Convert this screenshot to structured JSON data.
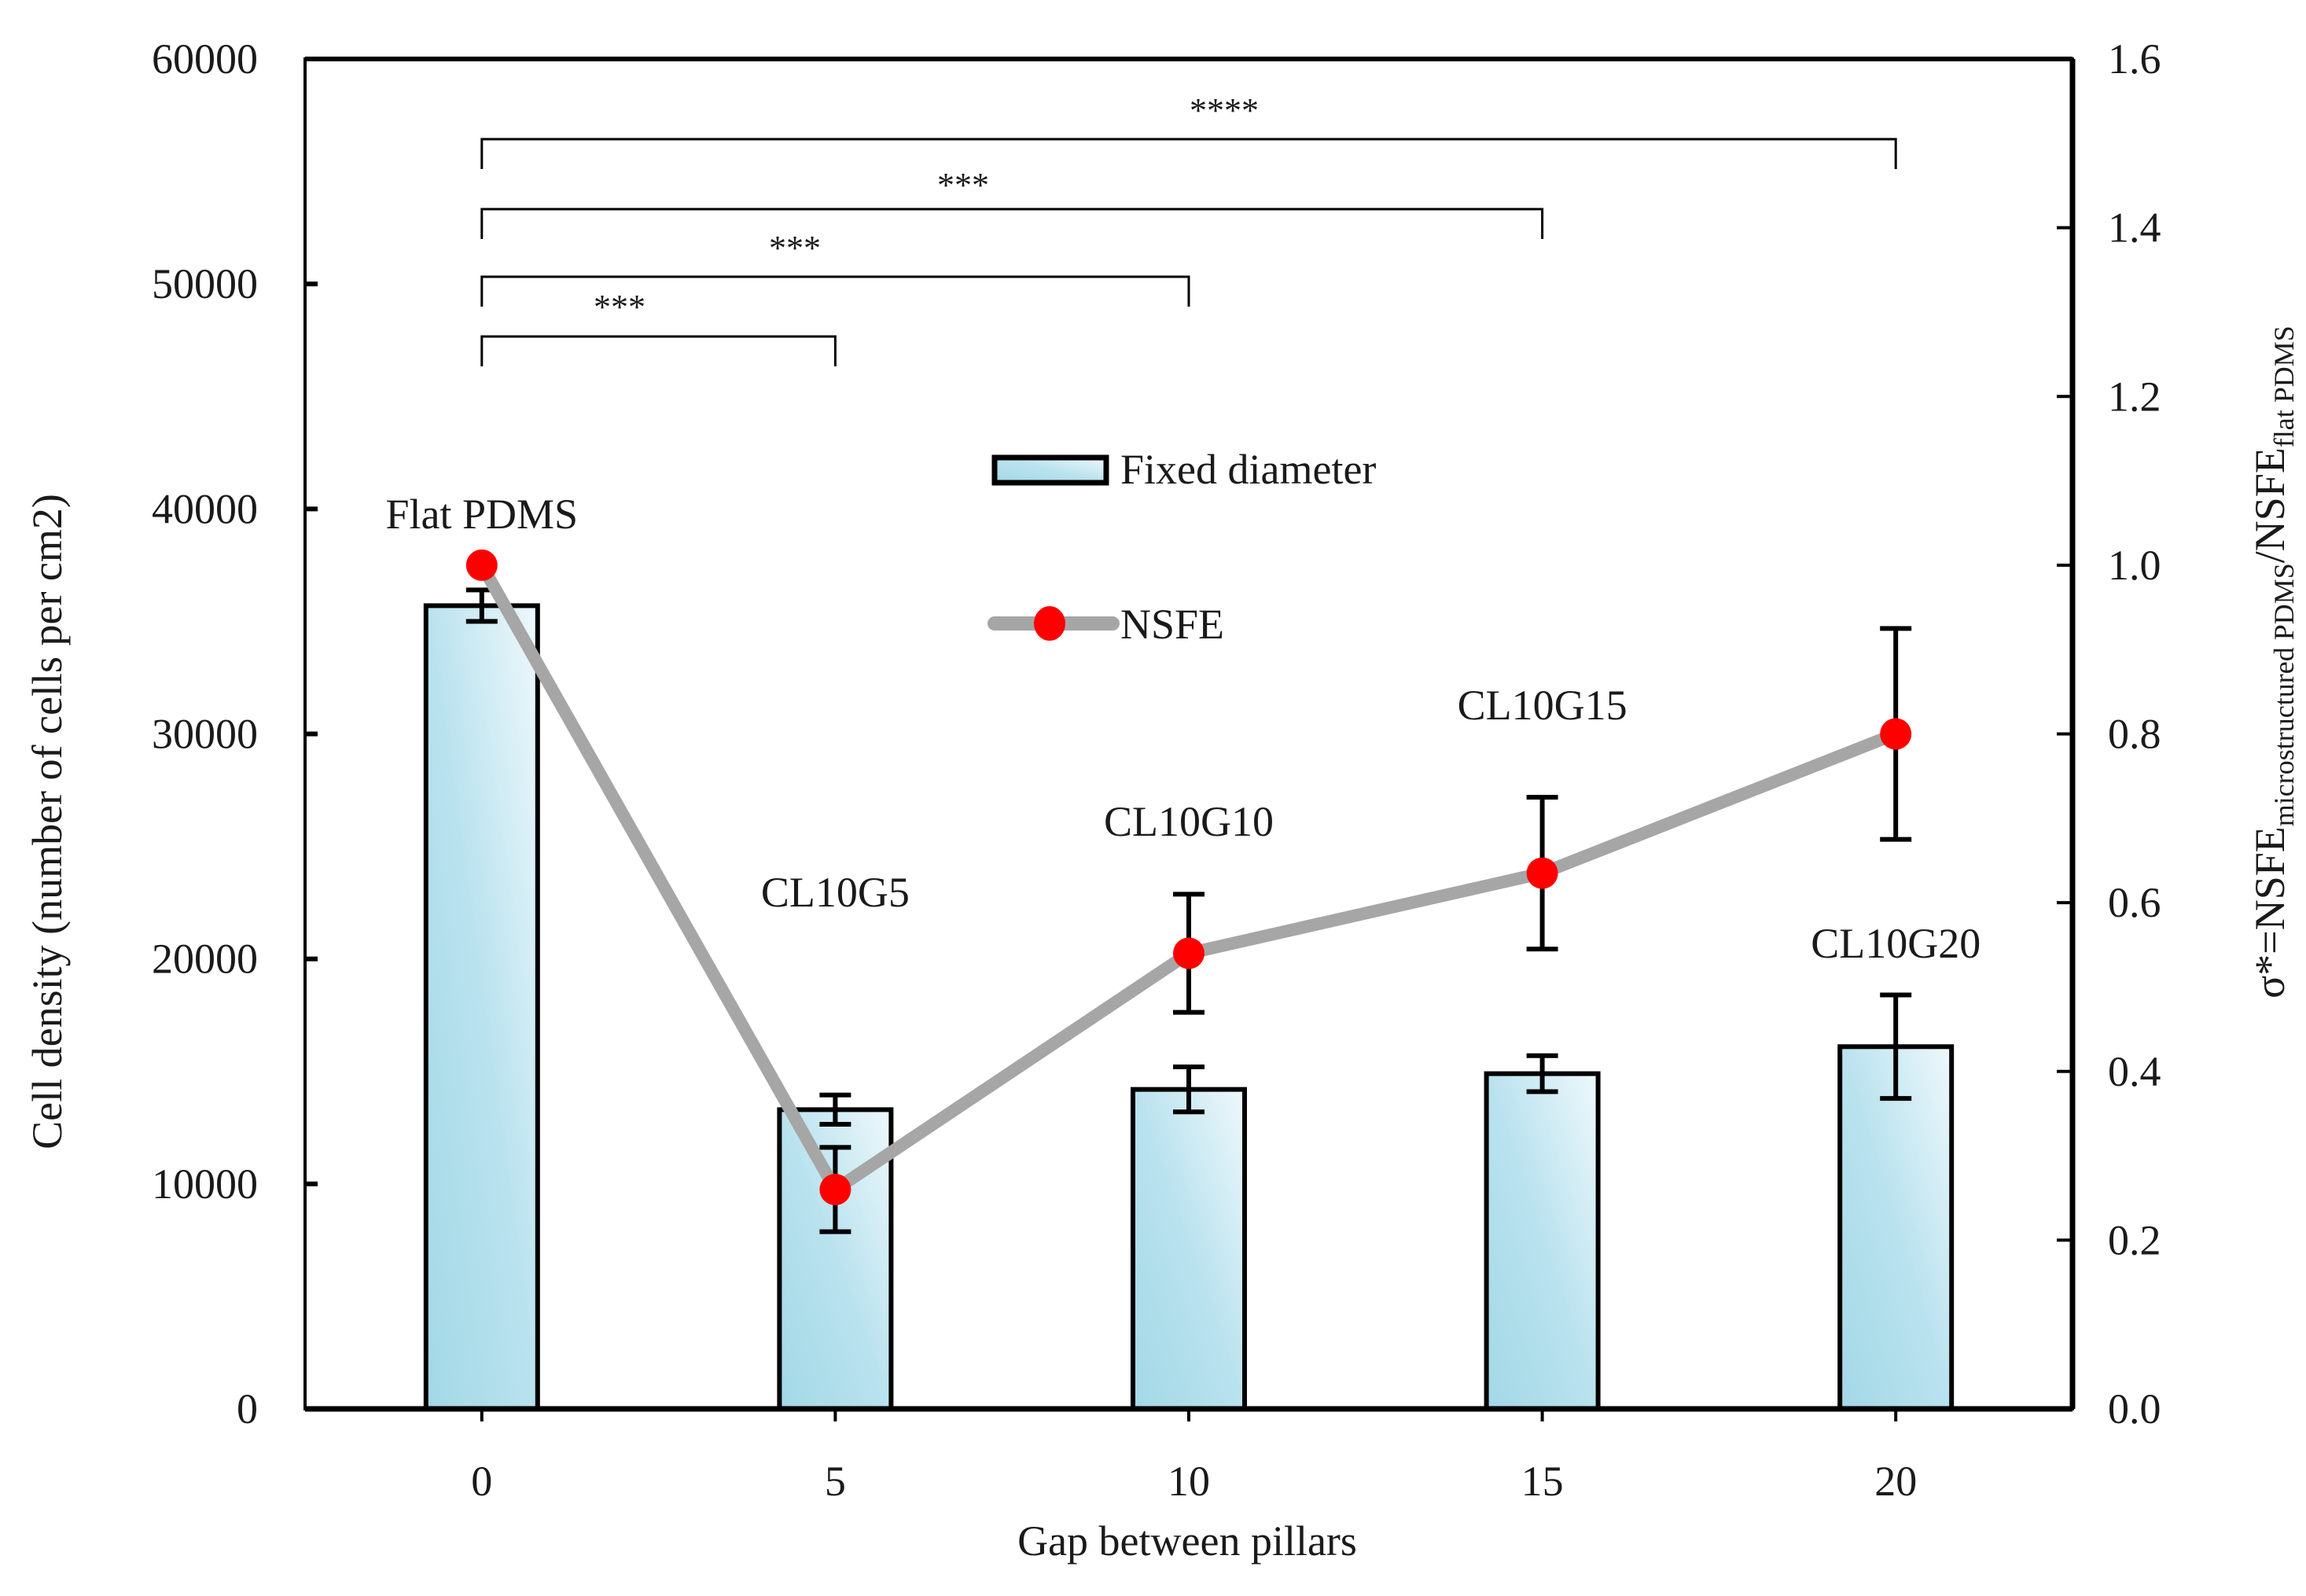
{
  "chart_data": {
    "type": "bar",
    "combo": "bar + line (dual axis)",
    "title": "",
    "xlabel": "Gap between pillars",
    "ylabel": "Cell density (number of cells per cm2)",
    "y2label": {
      "prefix": "σ*=NSFE",
      "sub1": "microstructured PDMS",
      "mid": "/NSFE",
      "sub2": "flat PDMS"
    },
    "categories": [
      "0",
      "5",
      "10",
      "15",
      "20"
    ],
    "x_values": [
      0,
      5,
      10,
      15,
      20
    ],
    "xlim": [
      -2.5,
      22.5
    ],
    "ylim": [
      0,
      60000
    ],
    "y2lim": [
      0.0,
      1.6
    ],
    "yticks": [
      "0",
      "10000",
      "20000",
      "30000",
      "40000",
      "50000",
      "60000"
    ],
    "y2ticks": [
      "0.0",
      "0.2",
      "0.4",
      "0.6",
      "0.8",
      "1.0",
      "1.2",
      "1.4",
      "1.6"
    ],
    "grid": false,
    "legend_position": "inside-top-center",
    "series": [
      {
        "name": "Fixed diameter",
        "type": "bar",
        "axis": "left",
        "values": [
          35700,
          13300,
          14200,
          14900,
          16100
        ],
        "errors": [
          700,
          650,
          1000,
          800,
          2300
        ],
        "fill": "#a8dbe8"
      },
      {
        "name": "NSFE",
        "type": "line",
        "axis": "right",
        "values": [
          1.0,
          0.26,
          0.54,
          0.635,
          0.8
        ],
        "errors": [
          0,
          0.05,
          0.07,
          0.09,
          0.125
        ],
        "line_color": "#a6a6a6",
        "marker_color": "#ff0000"
      }
    ],
    "annotations": [
      {
        "text": "Flat PDMS",
        "x": 0
      },
      {
        "text": "CL10G5",
        "x": 5
      },
      {
        "text": "CL10G10",
        "x": 10
      },
      {
        "text": "CL10G15",
        "x": 15
      },
      {
        "text": "CL10G20",
        "x": 20
      }
    ],
    "significance_brackets": [
      {
        "from": 0,
        "to": 20,
        "label": "****"
      },
      {
        "from": 0,
        "to": 15,
        "label": "***"
      },
      {
        "from": 0,
        "to": 10,
        "label": "***"
      },
      {
        "from": 0,
        "to": 5,
        "label": "***"
      }
    ]
  },
  "legend": {
    "bar_label": "Fixed diameter",
    "line_label": "NSFE"
  }
}
